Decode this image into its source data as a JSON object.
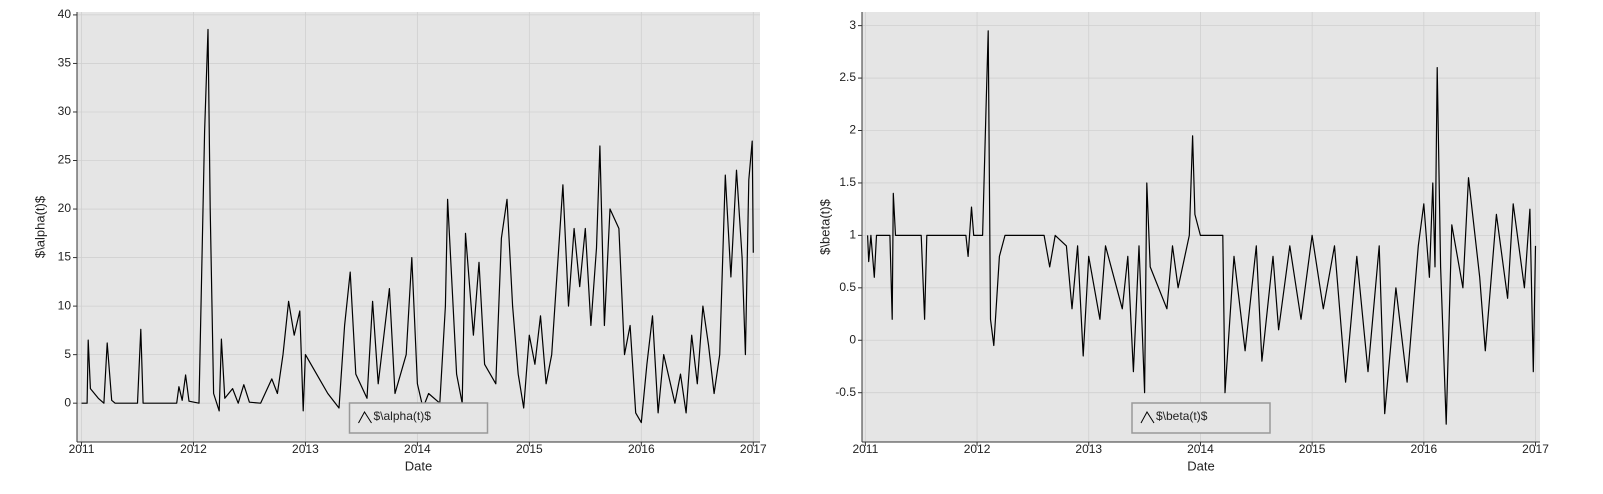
{
  "chart_data": [
    {
      "type": "line",
      "x_label": "Date",
      "y_label": "$\\alpha(t)$",
      "grid": true,
      "legend": "bottom center",
      "x": [
        2011.0,
        2011.05,
        2011.06,
        2011.08,
        2011.15,
        2011.2,
        2011.23,
        2011.27,
        2011.3,
        2011.5,
        2011.53,
        2011.55,
        2011.85,
        2011.87,
        2011.9,
        2011.93,
        2011.96,
        2012.05,
        2012.1,
        2012.13,
        2012.15,
        2012.18,
        2012.23,
        2012.25,
        2012.28,
        2012.35,
        2012.4,
        2012.45,
        2012.5,
        2012.6,
        2012.7,
        2012.75,
        2012.8,
        2012.85,
        2012.9,
        2012.95,
        2012.98,
        2013.0,
        2013.1,
        2013.2,
        2013.3,
        2013.35,
        2013.4,
        2013.45,
        2013.55,
        2013.6,
        2013.65,
        2013.75,
        2013.8,
        2013.9,
        2013.95,
        2014.0,
        2014.05,
        2014.1,
        2014.2,
        2014.25,
        2014.27,
        2014.35,
        2014.4,
        2014.43,
        2014.5,
        2014.55,
        2014.6,
        2014.7,
        2014.75,
        2014.8,
        2014.85,
        2014.9,
        2014.95,
        2015.0,
        2015.05,
        2015.1,
        2015.15,
        2015.2,
        2015.3,
        2015.35,
        2015.4,
        2015.45,
        2015.5,
        2015.55,
        2015.6,
        2015.63,
        2015.67,
        2015.72,
        2015.8,
        2015.85,
        2015.9,
        2015.95,
        2016.0,
        2016.05,
        2016.1,
        2016.15,
        2016.2,
        2016.3,
        2016.35,
        2016.4,
        2016.45,
        2016.5,
        2016.55,
        2016.6,
        2016.65,
        2016.7,
        2016.75,
        2016.8,
        2016.85,
        2016.9,
        2016.93,
        2016.96,
        2016.99,
        2017.0
      ],
      "series": [
        {
          "name": "$\\alpha(t)$",
          "color": "#000000",
          "values": [
            0,
            0,
            6.5,
            1.5,
            0.5,
            0,
            6.2,
            0.3,
            0,
            0,
            7.6,
            0,
            0,
            1.7,
            0.3,
            2.9,
            0.2,
            0,
            28,
            38.5,
            20,
            1,
            -0.8,
            6.6,
            0.5,
            1.5,
            0,
            1.9,
            0.1,
            0,
            2.5,
            1,
            5,
            10.5,
            7,
            9.5,
            -0.8,
            5,
            3,
            1,
            -0.5,
            8,
            13.5,
            3,
            0.5,
            10.5,
            2,
            11.8,
            1,
            5,
            15,
            2,
            -0.5,
            1,
            0,
            10,
            21,
            3,
            0,
            17.5,
            7,
            14.5,
            4,
            2,
            17,
            21,
            10,
            3,
            -0.5,
            7,
            4,
            9,
            2,
            5,
            22.5,
            10,
            18,
            12,
            18,
            8,
            16,
            26.5,
            8,
            20,
            18,
            5,
            8,
            -1,
            -2,
            4,
            9,
            -1,
            5,
            0,
            3,
            -1,
            7,
            2,
            10,
            6,
            1,
            5,
            23.5,
            13,
            24,
            15,
            5,
            23,
            27,
            15.5
          ]
        }
      ],
      "xlim": [
        2010.96,
        2017.06
      ],
      "xticks": [
        2011,
        2012,
        2013,
        2014,
        2015,
        2016,
        2017
      ],
      "ylim": [
        -4,
        40.3
      ],
      "yticks": [
        0,
        5,
        10,
        15,
        20,
        25,
        30,
        35,
        40
      ]
    },
    {
      "type": "line",
      "x_label": "Date",
      "y_label": "$\\beta(t)$",
      "grid": true,
      "legend": "bottom center",
      "x": [
        2011.02,
        2011.03,
        2011.05,
        2011.08,
        2011.1,
        2011.22,
        2011.24,
        2011.25,
        2011.27,
        2011.5,
        2011.53,
        2011.55,
        2011.9,
        2011.92,
        2011.95,
        2011.97,
        2012.05,
        2012.08,
        2012.1,
        2012.12,
        2012.15,
        2012.2,
        2012.25,
        2012.6,
        2012.65,
        2012.7,
        2012.8,
        2012.85,
        2012.9,
        2012.95,
        2013.0,
        2013.1,
        2013.15,
        2013.3,
        2013.35,
        2013.4,
        2013.45,
        2013.5,
        2013.52,
        2013.55,
        2013.7,
        2013.75,
        2013.8,
        2013.9,
        2013.93,
        2013.95,
        2014.0,
        2014.2,
        2014.22,
        2014.3,
        2014.4,
        2014.5,
        2014.55,
        2014.65,
        2014.7,
        2014.8,
        2014.9,
        2015.0,
        2015.1,
        2015.2,
        2015.3,
        2015.4,
        2015.5,
        2015.6,
        2015.65,
        2015.75,
        2015.85,
        2015.95,
        2016.0,
        2016.05,
        2016.08,
        2016.1,
        2016.12,
        2016.15,
        2016.2,
        2016.25,
        2016.35,
        2016.4,
        2016.5,
        2016.55,
        2016.65,
        2016.75,
        2016.8,
        2016.9,
        2016.95,
        2016.98,
        2017.0
      ],
      "series": [
        {
          "name": "$\\beta(t)$",
          "color": "#000000",
          "values": [
            1,
            0.75,
            1,
            0.6,
            1,
            1,
            0.2,
            1.4,
            1,
            1,
            0.2,
            1,
            1,
            0.8,
            1.27,
            1,
            1,
            2.2,
            2.95,
            0.2,
            -0.05,
            0.8,
            1,
            1,
            0.7,
            1,
            0.9,
            0.3,
            0.9,
            -0.15,
            0.8,
            0.2,
            0.9,
            0.3,
            0.8,
            -0.3,
            0.9,
            -0.5,
            1.5,
            0.7,
            0.3,
            0.9,
            0.5,
            1,
            1.95,
            1.2,
            1,
            1,
            -0.5,
            0.8,
            -0.1,
            0.9,
            -0.2,
            0.8,
            0.1,
            0.9,
            0.2,
            1,
            0.3,
            0.9,
            -0.4,
            0.8,
            -0.3,
            0.9,
            -0.7,
            0.5,
            -0.4,
            0.9,
            1.3,
            0.6,
            1.5,
            0.7,
            2.6,
            0.7,
            -0.8,
            1.1,
            0.5,
            1.55,
            0.6,
            -0.1,
            1.2,
            0.4,
            1.3,
            0.5,
            1.25,
            -0.3,
            0.9
          ]
        }
      ],
      "xlim": [
        2010.97,
        2017.04
      ],
      "xticks": [
        2011,
        2012,
        2013,
        2014,
        2015,
        2016,
        2017
      ],
      "ylim": [
        -0.97,
        3.13
      ],
      "yticks": [
        -0.5,
        0,
        0.5,
        1,
        1.5,
        2,
        2.5,
        3
      ]
    }
  ]
}
